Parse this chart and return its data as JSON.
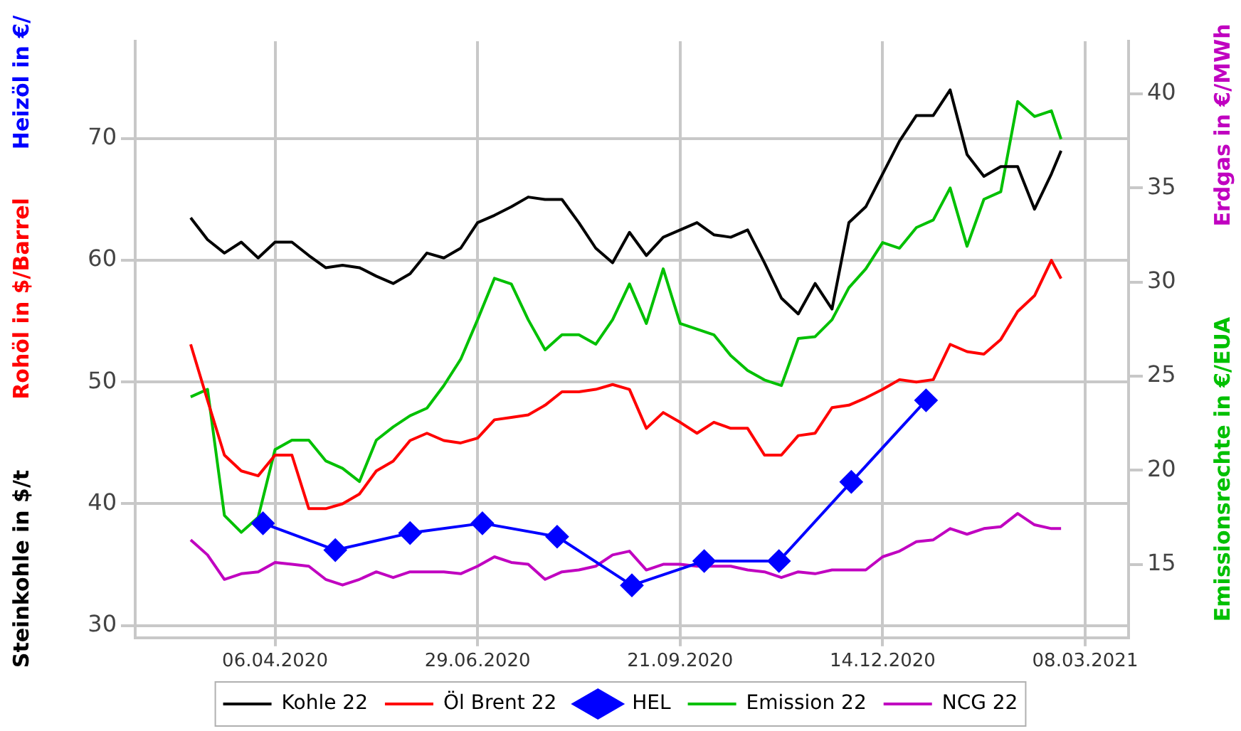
{
  "chart_data": {
    "type": "line",
    "ylabel": "Steinkohle in $/t",
    "y2label": "Emissionsrechte in €/EUA",
    "annotations": [
      "Rohöl in $/Barrel",
      "Heizöl in €/",
      "Erdgas in €/MWh"
    ],
    "x": [
      "2020-03-02",
      "2020-03-09",
      "2020-03-16",
      "2020-03-23",
      "2020-03-30",
      "2020-04-06",
      "2020-04-13",
      "2020-04-20",
      "2020-04-27",
      "2020-05-04",
      "2020-05-11",
      "2020-05-18",
      "2020-05-25",
      "2020-06-01",
      "2020-06-08",
      "2020-06-15",
      "2020-06-22",
      "2020-06-29",
      "2020-07-06",
      "2020-07-13",
      "2020-07-20",
      "2020-07-27",
      "2020-08-03",
      "2020-08-10",
      "2020-08-17",
      "2020-08-24",
      "2020-08-31",
      "2020-09-07",
      "2020-09-14",
      "2020-09-21",
      "2020-09-28",
      "2020-10-05",
      "2020-10-12",
      "2020-10-19",
      "2020-10-26",
      "2020-11-02",
      "2020-11-09",
      "2020-11-16",
      "2020-11-23",
      "2020-11-30",
      "2020-12-07",
      "2020-12-14",
      "2020-12-21",
      "2020-12-28",
      "2021-01-04",
      "2021-01-11",
      "2021-01-18",
      "2021-01-25",
      "2021-02-01",
      "2021-02-08",
      "2021-02-15",
      "2021-02-22",
      "2021-02-26"
    ],
    "series": [
      {
        "name": "Kohle 22",
        "color": "#000000",
        "marker": "none",
        "values": [
          63.5,
          61.7,
          60.6,
          61.5,
          60.2,
          61.5,
          61.5,
          60.4,
          59.4,
          59.6,
          59.4,
          58.7,
          58.1,
          58.9,
          60.6,
          60.2,
          61.0,
          63.1,
          63.7,
          64.4,
          65.2,
          65.0,
          65.0,
          63.1,
          61.0,
          59.8,
          62.3,
          60.4,
          61.9,
          62.5,
          63.1,
          62.1,
          61.9,
          62.5,
          59.8,
          56.9,
          55.6,
          58.1,
          56.0,
          63.1,
          64.4,
          67.1,
          69.8,
          71.9,
          71.9,
          74.0,
          68.7,
          66.9,
          67.7,
          67.7,
          64.2,
          67.1,
          69.0
        ]
      },
      {
        "name": "Öl Brent 22",
        "color": "#ff0000",
        "marker": "none",
        "values": [
          53.1,
          48.5,
          44.0,
          42.7,
          42.3,
          44.0,
          44.0,
          39.6,
          39.6,
          40.0,
          40.8,
          42.7,
          43.5,
          45.2,
          45.8,
          45.2,
          45.0,
          45.4,
          46.9,
          47.1,
          47.3,
          48.1,
          49.2,
          49.2,
          49.4,
          49.8,
          49.4,
          46.2,
          47.5,
          46.7,
          45.8,
          46.7,
          46.2,
          46.2,
          44.0,
          44.0,
          45.6,
          45.8,
          47.9,
          48.1,
          48.7,
          49.4,
          50.2,
          50.0,
          50.2,
          53.1,
          52.5,
          52.3,
          53.5,
          55.8,
          57.1,
          60.0,
          58.5
        ]
      },
      {
        "name": "HEL",
        "color": "#0000ff",
        "marker": "diamond",
        "x": [
          "2020-04-01",
          "2020-05-01",
          "2020-06-01",
          "2020-07-01",
          "2020-08-01",
          "2020-09-01",
          "2020-10-01",
          "2020-11-01",
          "2020-12-01",
          "2021-01-01"
        ],
        "values": [
          38.4,
          36.2,
          37.6,
          38.4,
          37.3,
          33.3,
          35.3,
          35.3,
          41.8,
          48.5
        ]
      },
      {
        "name": "Emission 22",
        "color": "#00c000",
        "marker": "none",
        "axis": "y2",
        "values": [
          23.9,
          24.3,
          17.6,
          16.7,
          17.5,
          21.1,
          21.6,
          21.6,
          20.5,
          20.1,
          19.4,
          21.6,
          22.3,
          22.9,
          23.3,
          24.5,
          25.9,
          28.0,
          30.2,
          29.9,
          28.0,
          26.4,
          27.2,
          27.2,
          26.7,
          28.0,
          29.9,
          27.8,
          30.7,
          27.8,
          27.5,
          27.2,
          26.1,
          25.3,
          24.8,
          24.5,
          27.0,
          27.1,
          28.0,
          29.7,
          30.7,
          32.1,
          31.8,
          32.9,
          33.3,
          35.0,
          31.9,
          34.4,
          34.8,
          39.6,
          38.8,
          39.1,
          37.6
        ]
      },
      {
        "name": "NCG 22",
        "color": "#c000c0",
        "marker": "none",
        "axis": "y2",
        "values": [
          16.3,
          15.5,
          14.2,
          14.5,
          14.6,
          15.1,
          15.0,
          14.9,
          14.2,
          13.9,
          14.2,
          14.6,
          14.3,
          14.6,
          14.6,
          14.6,
          14.5,
          14.9,
          15.4,
          15.1,
          15.0,
          14.2,
          14.6,
          14.7,
          14.9,
          15.5,
          15.7,
          14.7,
          15.0,
          15.0,
          14.9,
          14.9,
          14.9,
          14.7,
          14.6,
          14.3,
          14.6,
          14.5,
          14.7,
          14.7,
          14.7,
          15.4,
          15.7,
          16.2,
          16.3,
          16.9,
          16.6,
          16.9,
          17.0,
          17.7,
          17.1,
          16.9,
          16.9
        ]
      }
    ],
    "xlim": [
      "2020-02-08",
      "2021-03-26"
    ],
    "xticks": [
      {
        "value": "2020-04-06",
        "label": "06.04.2020"
      },
      {
        "value": "2020-06-29",
        "label": "29.06.2020"
      },
      {
        "value": "2020-09-21",
        "label": "21.09.2020"
      },
      {
        "value": "2020-12-14",
        "label": "14.12.2020"
      },
      {
        "value": "2021-03-08",
        "label": "08.03.2021"
      }
    ],
    "ylim": [
      29,
      78
    ],
    "yticks": [
      30,
      40,
      50,
      60,
      70
    ],
    "y2lim": [
      11.1,
      42.8
    ],
    "y2ticks": [
      15,
      20,
      25,
      30,
      35,
      40
    ],
    "grid": true,
    "legend": "bottom",
    "line_style": "solid"
  }
}
